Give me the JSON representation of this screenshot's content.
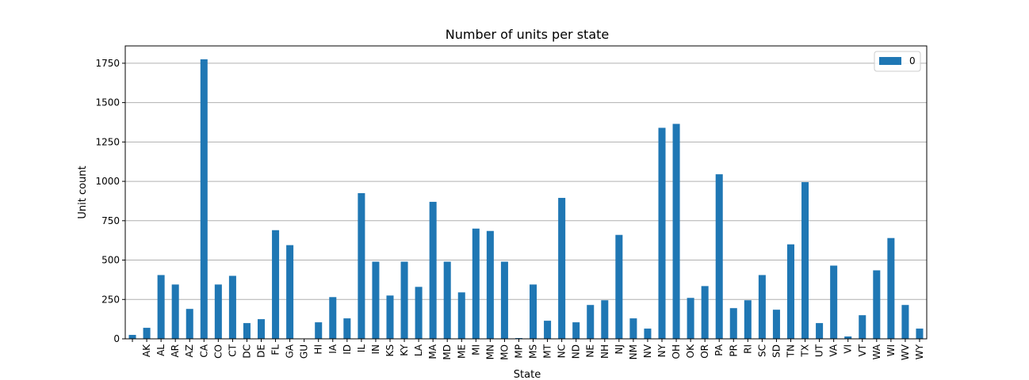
{
  "chart_data": {
    "type": "bar",
    "title": "Number of units per state",
    "xlabel": "State",
    "ylabel": "Unit count",
    "ylim": [
      0,
      1860
    ],
    "yticks": [
      0,
      250,
      500,
      750,
      1000,
      1250,
      1500,
      1750
    ],
    "grid": "y",
    "legend_position": "top-right",
    "bar_color": "#1f77b4",
    "categories": [
      "",
      "AK",
      "AL",
      "AR",
      "AZ",
      "CA",
      "CO",
      "CT",
      "DC",
      "DE",
      "FL",
      "GA",
      "GU",
      "HI",
      "IA",
      "ID",
      "IL",
      "IN",
      "KS",
      "KY",
      "LA",
      "MA",
      "MD",
      "ME",
      "MI",
      "MN",
      "MO",
      "MP",
      "MS",
      "MT",
      "NC",
      "ND",
      "NE",
      "NH",
      "NJ",
      "NM",
      "NV",
      "NY",
      "OH",
      "OK",
      "OR",
      "PA",
      "PR",
      "RI",
      "SC",
      "SD",
      "TN",
      "TX",
      "UT",
      "VA",
      "VI",
      "VT",
      "WA",
      "WI",
      "WV",
      "WY"
    ],
    "series": [
      {
        "name": "0",
        "values": [
          25,
          70,
          405,
          345,
          190,
          1775,
          345,
          400,
          100,
          125,
          690,
          595,
          0,
          105,
          265,
          130,
          925,
          490,
          275,
          490,
          330,
          870,
          490,
          295,
          700,
          685,
          490,
          5,
          345,
          115,
          895,
          105,
          215,
          245,
          660,
          130,
          65,
          1340,
          1365,
          260,
          335,
          1045,
          195,
          245,
          405,
          185,
          600,
          995,
          100,
          465,
          15,
          150,
          435,
          640,
          215,
          65
        ]
      }
    ]
  }
}
